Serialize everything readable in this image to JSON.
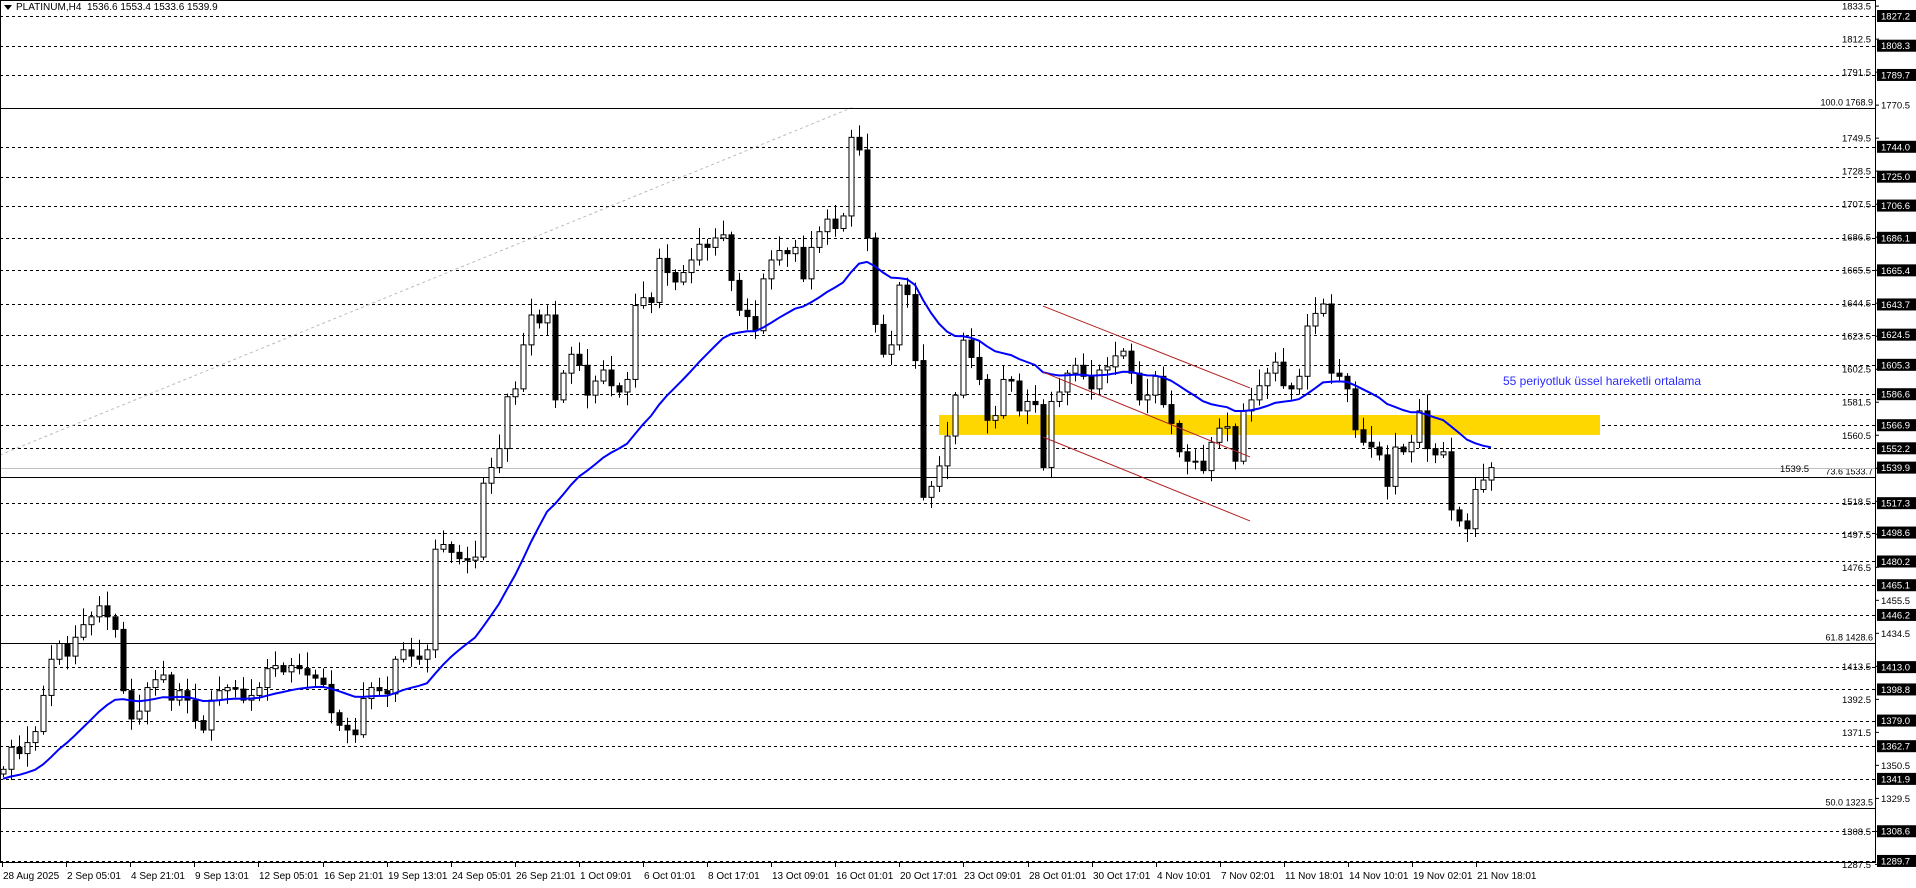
{
  "header": {
    "symbol": "PLATINUM,H4",
    "ohlc": "1536.6 1553.4 1533.6 1539.9"
  },
  "annotation": "55 periyotluk üssel hareketli ortalama",
  "colors": {
    "ema": "#0000ff",
    "zone": "#ffd700",
    "channel": "#b22222",
    "annotation": "#2b2bff",
    "price_line": "#c0c0c0"
  },
  "chart_data": {
    "type": "candlestick",
    "title": "PLATINUM,H4",
    "ylim": [
      1285.0,
      1837.0
    ],
    "grid": false,
    "current_price": 1539.9,
    "y_ticks": [
      "1833.5",
      "1812.5",
      "1791.5",
      "1770.5",
      "1749.5",
      "1728.5",
      "1707.5",
      "1686.5",
      "1665.5",
      "1644.5",
      "1623.5",
      "1602.5",
      "1581.5",
      "1560.5",
      "1539.5",
      "1518.5",
      "1497.5",
      "1476.5",
      "1455.5",
      "1434.5",
      "1413.5",
      "1392.5",
      "1371.5",
      "1350.5",
      "1329.5",
      "1308.5",
      "1287.5"
    ],
    "levels": [
      "1827.2",
      "1808.3",
      "1789.7",
      "1744.0",
      "1725.0",
      "1706.6",
      "1686.1",
      "1665.4",
      "1643.7",
      "1624.5",
      "1605.3",
      "1586.6",
      "1566.9",
      "1552.2",
      "1517.3",
      "1498.6",
      "1480.2",
      "1465.1",
      "1446.2",
      "1413.0",
      "1398.8",
      "1379.0",
      "1362.7",
      "1341.9",
      "1308.6",
      "1289.7"
    ],
    "price_label": "1539.9",
    "fibonacci": [
      {
        "label": "100.0 1768.9",
        "price": 1768.9
      },
      {
        "label": "73.6 1533.7",
        "price": 1533.7
      },
      {
        "label": "61.8 1428.6",
        "price": 1428.6
      },
      {
        "label": "50.0 1323.5",
        "price": 1323.5
      }
    ],
    "zone": [
      1560.7,
      1573.4
    ],
    "channel": {
      "upper": [
        1642.7,
        1590.6
      ],
      "middle": [
        1600.7,
        1546.7
      ],
      "lower": [
        1559.4,
        1506.0
      ]
    },
    "ema_period": 55,
    "x_ticks": [
      "28 Aug 2025",
      "2 Sep 05:01",
      "4 Sep 21:01",
      "9 Sep 13:01",
      "12 Sep 05:01",
      "16 Sep 21:01",
      "19 Sep 13:01",
      "24 Sep 05:01",
      "26 Sep 21:01",
      "1 Oct 09:01",
      "6 Oct 01:01",
      "8 Oct 17:01",
      "13 Oct 09:01",
      "16 Oct 01:01",
      "20 Oct 17:01",
      "23 Oct 09:01",
      "28 Oct 01:01",
      "30 Oct 17:01",
      "4 Nov 10:01",
      "7 Nov 02:01",
      "11 Nov 18:01",
      "14 Nov 10:01",
      "19 Nov 02:01",
      "21 Nov 18:01"
    ],
    "closes": [
      1348,
      1362,
      1358,
      1365,
      1372,
      1395,
      1418,
      1428,
      1420,
      1432,
      1440,
      1445,
      1452,
      1445,
      1437,
      1398,
      1380,
      1385,
      1400,
      1405,
      1408,
      1392,
      1398,
      1392,
      1379,
      1373,
      1392,
      1398,
      1400,
      1399,
      1392,
      1395,
      1400,
      1412,
      1414,
      1410,
      1414,
      1412,
      1408,
      1406,
      1402,
      1384,
      1376,
      1373,
      1370,
      1393,
      1400,
      1398,
      1396,
      1418,
      1424,
      1420,
      1418,
      1424,
      1488,
      1491,
      1486,
      1482,
      1481,
      1483,
      1530,
      1540,
      1552,
      1585,
      1590,
      1618,
      1637,
      1632,
      1637,
      1583,
      1600,
      1612,
      1605,
      1586,
      1595,
      1602,
      1592,
      1588,
      1596,
      1643,
      1648,
      1645,
      1673,
      1664,
      1658,
      1664,
      1672,
      1682,
      1680,
      1686,
      1688,
      1659,
      1640,
      1636,
      1627,
      1660,
      1672,
      1678,
      1676,
      1680,
      1660,
      1680,
      1690,
      1698,
      1692,
      1700,
      1750,
      1742,
      1686,
      1631,
      1612,
      1618,
      1656,
      1650,
      1608,
      1521,
      1528,
      1541,
      1560,
      1586,
      1621,
      1610,
      1596,
      1570,
      1573,
      1596,
      1595,
      1576,
      1582,
      1580,
      1540,
      1582,
      1588,
      1600,
      1605,
      1598,
      1590,
      1602,
      1604,
      1611,
      1614,
      1600,
      1583,
      1586,
      1598,
      1580,
      1568,
      1550,
      1544,
      1544,
      1538,
      1556,
      1565,
      1566,
      1544,
      1576,
      1583,
      1592,
      1600,
      1607,
      1592,
      1590,
      1598,
      1630,
      1638,
      1644,
      1600,
      1598,
      1590,
      1564,
      1556,
      1553,
      1548,
      1528,
      1553,
      1550,
      1556,
      1576,
      1552,
      1548,
      1550,
      1513,
      1506,
      1501,
      1526,
      1532,
      1539.9
    ]
  }
}
